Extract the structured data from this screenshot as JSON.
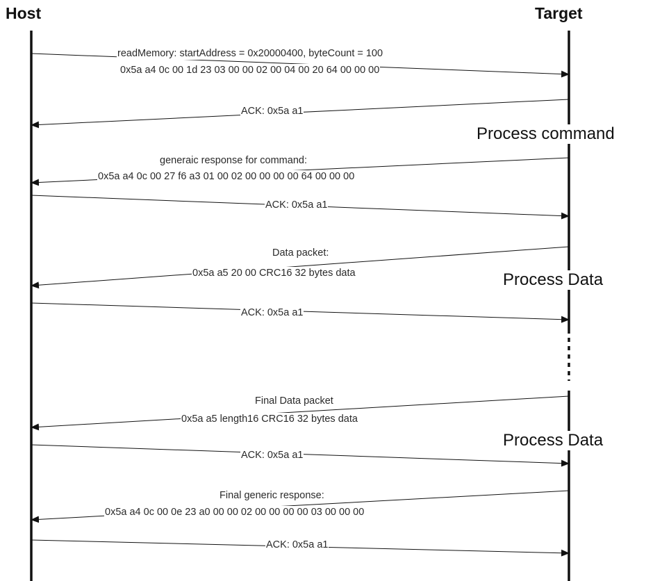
{
  "host_label": "Host",
  "target_label": "Target",
  "messages": [
    {
      "direction": "to-target",
      "lines": [
        "readMemory: startAddress = 0x20000400, byteCount = 100",
        "0x5a a4 0c 00 1d 23 03 00 00 02 00 04 00 20 64 00 00 00"
      ]
    },
    {
      "direction": "to-host",
      "lines": [
        "ACK: 0x5a a1"
      ]
    },
    {
      "direction": "to-host",
      "lines": [
        "generaic response for command:",
        "0x5a a4 0c 00 27 f6 a3 01 00 02 00 00 00 00 64 00 00 00"
      ]
    },
    {
      "direction": "to-target",
      "lines": [
        "ACK: 0x5a a1"
      ]
    },
    {
      "direction": "to-host",
      "lines": [
        "Data packet:",
        "0x5a a5 20 00 CRC16 32 bytes data"
      ]
    },
    {
      "direction": "to-target",
      "lines": [
        "ACK: 0x5a a1"
      ]
    },
    {
      "direction": "to-host",
      "lines": [
        "Final Data packet",
        "0x5a a5 length16 CRC16 32 bytes data"
      ]
    },
    {
      "direction": "to-target",
      "lines": [
        "ACK: 0x5a a1"
      ]
    },
    {
      "direction": "to-host",
      "lines": [
        "Final generic response:",
        "0x5a a4 0c 00 0e 23 a0 00 00 02 00 00 00 00 03 00 00 00"
      ]
    },
    {
      "direction": "to-target",
      "lines": [
        "ACK: 0x5a a1"
      ]
    }
  ],
  "target_notes": [
    "Process command",
    "Process Data",
    "Process Data"
  ]
}
